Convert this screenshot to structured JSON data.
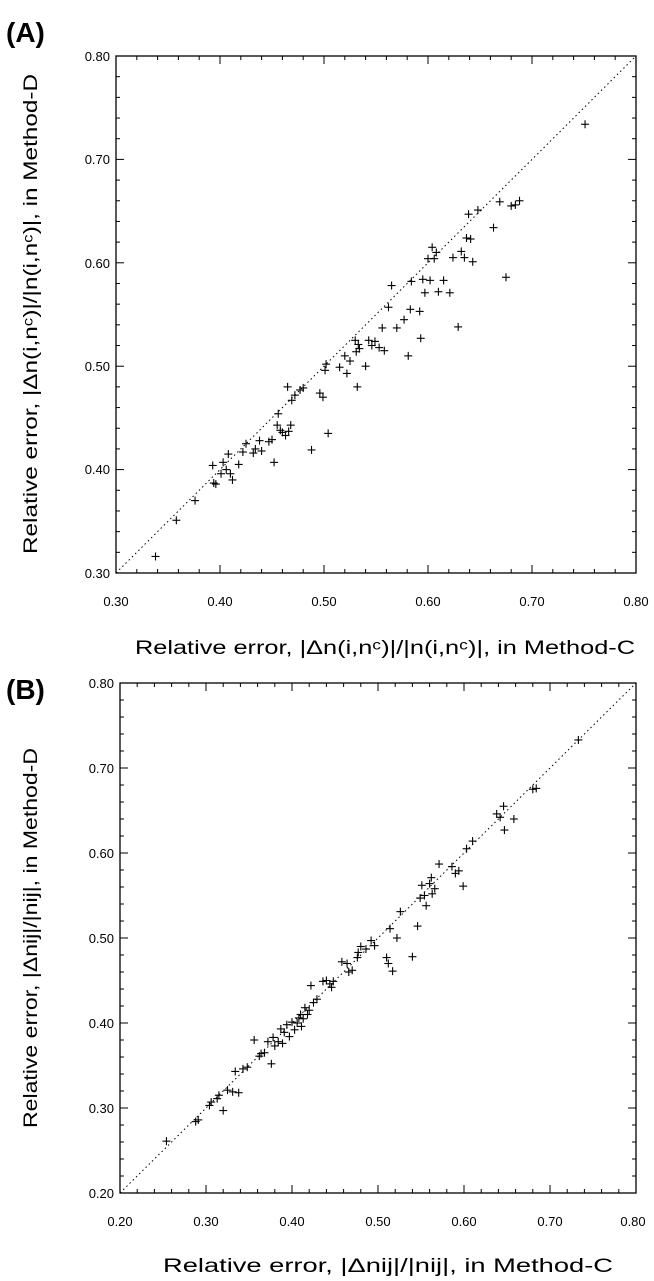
{
  "colors": {
    "ink": "#000000",
    "background": "#ffffff"
  },
  "chart_data": [
    {
      "panel_label": "(A)",
      "type": "scatter",
      "marker": "plus",
      "reference_line": "y = x (dotted)",
      "grid": false,
      "xlim": [
        0.3,
        0.8
      ],
      "ylim": [
        0.3,
        0.8
      ],
      "x_ticks": [
        "0.30",
        "0.40",
        "0.50",
        "0.60",
        "0.70",
        "0.80"
      ],
      "y_ticks": [
        "0.30",
        "0.40",
        "0.50",
        "0.60",
        "0.70",
        "0.80"
      ],
      "xlabel": "Relative error, |Δn(i,nᶜ)|/|n(i,nᶜ)|, in Method-C",
      "ylabel": "Relative error, |Δn(i,nᶜ)|/|n(i,nᶜ)|, in Method-D",
      "points": [
        [
          0.338,
          0.316
        ],
        [
          0.358,
          0.351
        ],
        [
          0.376,
          0.37
        ],
        [
          0.393,
          0.404
        ],
        [
          0.394,
          0.387
        ],
        [
          0.396,
          0.386
        ],
        [
          0.401,
          0.396
        ],
        [
          0.403,
          0.407
        ],
        [
          0.406,
          0.4
        ],
        [
          0.408,
          0.415
        ],
        [
          0.41,
          0.396
        ],
        [
          0.412,
          0.39
        ],
        [
          0.418,
          0.405
        ],
        [
          0.422,
          0.417
        ],
        [
          0.425,
          0.425
        ],
        [
          0.432,
          0.416
        ],
        [
          0.434,
          0.42
        ],
        [
          0.438,
          0.428
        ],
        [
          0.44,
          0.418
        ],
        [
          0.447,
          0.427
        ],
        [
          0.45,
          0.429
        ],
        [
          0.452,
          0.407
        ],
        [
          0.455,
          0.443
        ],
        [
          0.456,
          0.454
        ],
        [
          0.458,
          0.438
        ],
        [
          0.46,
          0.436
        ],
        [
          0.463,
          0.433
        ],
        [
          0.466,
          0.437
        ],
        [
          0.468,
          0.443
        ],
        [
          0.465,
          0.48
        ],
        [
          0.469,
          0.467
        ],
        [
          0.472,
          0.472
        ],
        [
          0.477,
          0.477
        ],
        [
          0.48,
          0.479
        ],
        [
          0.488,
          0.419
        ],
        [
          0.496,
          0.474
        ],
        [
          0.499,
          0.47
        ],
        [
          0.501,
          0.496
        ],
        [
          0.502,
          0.502
        ],
        [
          0.504,
          0.435
        ],
        [
          0.515,
          0.499
        ],
        [
          0.52,
          0.51
        ],
        [
          0.522,
          0.493
        ],
        [
          0.525,
          0.505
        ],
        [
          0.53,
          0.525
        ],
        [
          0.531,
          0.514
        ],
        [
          0.532,
          0.48
        ],
        [
          0.533,
          0.521
        ],
        [
          0.534,
          0.517
        ],
        [
          0.54,
          0.5
        ],
        [
          0.543,
          0.525
        ],
        [
          0.546,
          0.52
        ],
        [
          0.549,
          0.524
        ],
        [
          0.553,
          0.518
        ],
        [
          0.556,
          0.537
        ],
        [
          0.558,
          0.515
        ],
        [
          0.562,
          0.557
        ],
        [
          0.565,
          0.578
        ],
        [
          0.57,
          0.537
        ],
        [
          0.577,
          0.545
        ],
        [
          0.581,
          0.51
        ],
        [
          0.583,
          0.555
        ],
        [
          0.584,
          0.582
        ],
        [
          0.592,
          0.553
        ],
        [
          0.593,
          0.527
        ],
        [
          0.595,
          0.584
        ],
        [
          0.597,
          0.571
        ],
        [
          0.6,
          0.604
        ],
        [
          0.602,
          0.583
        ],
        [
          0.604,
          0.615
        ],
        [
          0.606,
          0.604
        ],
        [
          0.608,
          0.61
        ],
        [
          0.61,
          0.572
        ],
        [
          0.615,
          0.583
        ],
        [
          0.621,
          0.571
        ],
        [
          0.624,
          0.605
        ],
        [
          0.629,
          0.538
        ],
        [
          0.632,
          0.611
        ],
        [
          0.635,
          0.605
        ],
        [
          0.637,
          0.624
        ],
        [
          0.639,
          0.647
        ],
        [
          0.641,
          0.623
        ],
        [
          0.643,
          0.601
        ],
        [
          0.648,
          0.651
        ],
        [
          0.663,
          0.634
        ],
        [
          0.669,
          0.659
        ],
        [
          0.675,
          0.586
        ],
        [
          0.68,
          0.655
        ],
        [
          0.684,
          0.656
        ],
        [
          0.688,
          0.66
        ],
        [
          0.751,
          0.734
        ]
      ]
    },
    {
      "panel_label": "(B)",
      "type": "scatter",
      "marker": "plus",
      "reference_line": "y = x (dotted)",
      "grid": false,
      "xlim": [
        0.2,
        0.8
      ],
      "ylim": [
        0.2,
        0.8
      ],
      "x_ticks": [
        "0.20",
        "0.30",
        "0.40",
        "0.50",
        "0.60",
        "0.70",
        "0.80"
      ],
      "y_ticks": [
        "0.20",
        "0.30",
        "0.40",
        "0.50",
        "0.60",
        "0.70",
        "0.80"
      ],
      "xlabel": "Relative error, |Δnij|/|nij|, in Method-C",
      "ylabel": "Relative error, |Δnij|/|nij|, in Method-D",
      "points": [
        [
          0.254,
          0.261
        ],
        [
          0.288,
          0.284
        ],
        [
          0.291,
          0.286
        ],
        [
          0.304,
          0.303
        ],
        [
          0.306,
          0.307
        ],
        [
          0.313,
          0.311
        ],
        [
          0.315,
          0.315
        ],
        [
          0.32,
          0.297
        ],
        [
          0.325,
          0.321
        ],
        [
          0.331,
          0.319
        ],
        [
          0.334,
          0.343
        ],
        [
          0.338,
          0.318
        ],
        [
          0.343,
          0.346
        ],
        [
          0.348,
          0.348
        ],
        [
          0.356,
          0.38
        ],
        [
          0.362,
          0.361
        ],
        [
          0.364,
          0.364
        ],
        [
          0.368,
          0.365
        ],
        [
          0.372,
          0.378
        ],
        [
          0.376,
          0.352
        ],
        [
          0.378,
          0.383
        ],
        [
          0.38,
          0.373
        ],
        [
          0.384,
          0.378
        ],
        [
          0.387,
          0.393
        ],
        [
          0.389,
          0.376
        ],
        [
          0.391,
          0.389
        ],
        [
          0.394,
          0.398
        ],
        [
          0.397,
          0.384
        ],
        [
          0.4,
          0.401
        ],
        [
          0.403,
          0.392
        ],
        [
          0.406,
          0.4
        ],
        [
          0.408,
          0.406
        ],
        [
          0.41,
          0.41
        ],
        [
          0.411,
          0.396
        ],
        [
          0.413,
          0.405
        ],
        [
          0.415,
          0.418
        ],
        [
          0.418,
          0.41
        ],
        [
          0.42,
          0.415
        ],
        [
          0.422,
          0.444
        ],
        [
          0.425,
          0.424
        ],
        [
          0.429,
          0.428
        ],
        [
          0.436,
          0.449
        ],
        [
          0.44,
          0.45
        ],
        [
          0.444,
          0.446
        ],
        [
          0.446,
          0.442
        ],
        [
          0.448,
          0.449
        ],
        [
          0.458,
          0.472
        ],
        [
          0.464,
          0.47
        ],
        [
          0.466,
          0.46
        ],
        [
          0.47,
          0.462
        ],
        [
          0.476,
          0.477
        ],
        [
          0.477,
          0.483
        ],
        [
          0.48,
          0.49
        ],
        [
          0.486,
          0.487
        ],
        [
          0.492,
          0.497
        ],
        [
          0.496,
          0.491
        ],
        [
          0.51,
          0.477
        ],
        [
          0.512,
          0.47
        ],
        [
          0.514,
          0.511
        ],
        [
          0.517,
          0.461
        ],
        [
          0.522,
          0.5
        ],
        [
          0.526,
          0.531
        ],
        [
          0.54,
          0.478
        ],
        [
          0.546,
          0.514
        ],
        [
          0.549,
          0.547
        ],
        [
          0.551,
          0.562
        ],
        [
          0.554,
          0.55
        ],
        [
          0.556,
          0.538
        ],
        [
          0.56,
          0.564
        ],
        [
          0.562,
          0.571
        ],
        [
          0.563,
          0.552
        ],
        [
          0.566,
          0.558
        ],
        [
          0.571,
          0.587
        ],
        [
          0.586,
          0.584
        ],
        [
          0.59,
          0.576
        ],
        [
          0.594,
          0.579
        ],
        [
          0.599,
          0.561
        ],
        [
          0.603,
          0.605
        ],
        [
          0.61,
          0.614
        ],
        [
          0.638,
          0.646
        ],
        [
          0.642,
          0.642
        ],
        [
          0.646,
          0.655
        ],
        [
          0.647,
          0.627
        ],
        [
          0.658,
          0.64
        ],
        [
          0.68,
          0.675
        ],
        [
          0.684,
          0.676
        ],
        [
          0.733,
          0.733
        ]
      ]
    }
  ]
}
